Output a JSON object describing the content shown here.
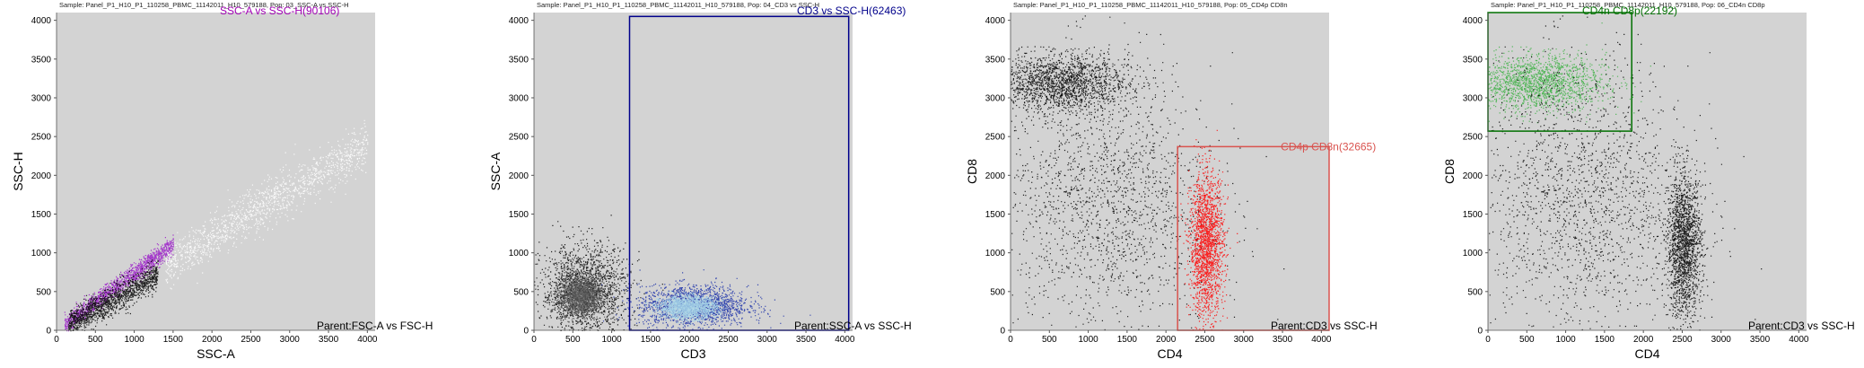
{
  "chart_data": [
    {
      "type": "scatter",
      "title": "Sample: Panel_P1_H10_P1_110258_PBMC_11142011_H10_579188, Pop: 03_SSC-A vs SSC-H",
      "xlabel": "SSC-A",
      "ylabel": "SSC-H",
      "xlim": [
        0,
        4100
      ],
      "ylim": [
        0,
        4100
      ],
      "xticks": [
        0,
        500,
        1000,
        1500,
        2000,
        2500,
        3000,
        3500,
        4000
      ],
      "yticks": [
        0,
        500,
        1000,
        1500,
        2000,
        2500,
        3000,
        3500,
        4000
      ],
      "gate": {
        "label": "SSC-A vs SSC-H(90106)",
        "color": "#a000b4",
        "shape": "none"
      },
      "parent_label": "Parent:FSC-A vs FSC-H",
      "colors": {
        "gated": "#9a1bc8",
        "ungated": "#000000",
        "background": "#d3d3d3"
      },
      "populations": [
        {
          "name": "gated",
          "kind": "diagonal",
          "x_range": [
            100,
            1500
          ],
          "slope": 0.74,
          "spread": 60,
          "color": "#9a1bc8"
        },
        {
          "name": "ungated",
          "kind": "diagonal",
          "x_range": [
            150,
            1300
          ],
          "slope": 0.55,
          "spread": 90,
          "color": "#000000"
        },
        {
          "name": "debris",
          "kind": "diagonal",
          "x_range": [
            1400,
            4000
          ],
          "slope": 0.6,
          "spread": 150,
          "color": "#ffffff"
        }
      ]
    },
    {
      "type": "scatter",
      "title": "Sample: Panel_P1_H10_P1_110258_PBMC_11142011_H10_579188, Pop: 04_CD3 vs SSC-H",
      "xlabel": "CD3",
      "ylabel": "SSC-A",
      "xlim": [
        0,
        4100
      ],
      "ylim": [
        0,
        4100
      ],
      "xticks": [
        0,
        500,
        1000,
        1500,
        2000,
        2500,
        3000,
        3500,
        4000
      ],
      "yticks": [
        0,
        500,
        1000,
        1500,
        2000,
        2500,
        3000,
        3500,
        4000
      ],
      "gate": {
        "label": "CD3 vs SSC-H(62463)",
        "color": "#00008b",
        "shape": "rect",
        "x": [
          1230,
          4050
        ],
        "y": [
          0,
          4050
        ]
      },
      "parent_label": "Parent:SSC-A vs SSC-H",
      "colors": {
        "gated": "#1a2fa8",
        "core": "#a8d8ea",
        "ungated": "#000000",
        "background": "#d3d3d3"
      },
      "populations": [
        {
          "name": "CD3-neg",
          "kind": "blob",
          "cx": 650,
          "cy": 500,
          "sx": 280,
          "sy": 300,
          "color": "#000000"
        },
        {
          "name": "CD3-neg-core",
          "kind": "blob",
          "cx": 600,
          "cy": 450,
          "sx": 130,
          "sy": 120,
          "color": "#555555"
        },
        {
          "name": "CD3-pos",
          "kind": "blob",
          "cx": 2050,
          "cy": 320,
          "sx": 350,
          "sy": 130,
          "color": "#1a2fa8"
        },
        {
          "name": "CD3-pos-core",
          "kind": "blob",
          "cx": 1980,
          "cy": 300,
          "sx": 180,
          "sy": 70,
          "color": "#a8d8ea"
        }
      ]
    },
    {
      "type": "scatter",
      "title": "Sample: Panel_P1_H10_P1_110258_PBMC_11142011_H10_579188, Pop: 05_CD4p CD8n",
      "xlabel": "CD4",
      "ylabel": "CD8",
      "xlim": [
        0,
        4100
      ],
      "ylim": [
        0,
        4100
      ],
      "xticks": [
        0,
        500,
        1000,
        1500,
        2000,
        2500,
        3000,
        3500,
        4000
      ],
      "yticks": [
        0,
        500,
        1000,
        1500,
        2000,
        2500,
        3000,
        3500,
        4000
      ],
      "gate": {
        "label": "CD4p CD8n(32665)",
        "color": "#d9534f",
        "shape": "rect",
        "x": [
          2150,
          4100
        ],
        "y": [
          0,
          2370
        ]
      },
      "parent_label": "Parent:CD3 vs SSC-H",
      "colors": {
        "gated": "#ff0000",
        "ungated": "#000000",
        "background": "#d3d3d3"
      },
      "populations": [
        {
          "name": "CD8-pos",
          "kind": "blob",
          "cx": 600,
          "cy": 3200,
          "sx": 450,
          "sy": 180,
          "color": "#000000"
        },
        {
          "name": "scatter",
          "kind": "blob",
          "cx": 1200,
          "cy": 1700,
          "sx": 700,
          "sy": 900,
          "color": "#000000"
        },
        {
          "name": "CD4-pos",
          "kind": "blob",
          "cx": 2520,
          "cy": 1100,
          "sx": 110,
          "sy": 450,
          "color": "#ff0000"
        }
      ]
    },
    {
      "type": "scatter",
      "title": "Sample: Panel_P1_H10_P1_110258_PBMC_11142011_H10_579188, Pop: 06_CD4n CD8p",
      "xlabel": "CD4",
      "ylabel": "CD8",
      "xlim": [
        0,
        4100
      ],
      "ylim": [
        0,
        4100
      ],
      "xticks": [
        0,
        500,
        1000,
        1500,
        2000,
        2500,
        3000,
        3500,
        4000
      ],
      "yticks": [
        0,
        500,
        1000,
        1500,
        2000,
        2500,
        3000,
        3500,
        4000
      ],
      "gate": {
        "label": "CD4n CD8p(22192)",
        "color": "#007000",
        "shape": "rect",
        "x": [
          0,
          1850
        ],
        "y": [
          2570,
          4100
        ]
      },
      "parent_label": "Parent:CD3 vs SSC-H",
      "colors": {
        "gated": "#3cb043",
        "ungated": "#000000",
        "background": "#d3d3d3"
      },
      "populations": [
        {
          "name": "CD8-pos",
          "kind": "blob",
          "cx": 600,
          "cy": 3200,
          "sx": 450,
          "sy": 180,
          "color": "#3cb043"
        },
        {
          "name": "scatter",
          "kind": "blob",
          "cx": 1200,
          "cy": 1700,
          "sx": 700,
          "sy": 900,
          "color": "#000000"
        },
        {
          "name": "CD4-pos",
          "kind": "blob",
          "cx": 2520,
          "cy": 1100,
          "sx": 110,
          "sy": 450,
          "color": "#000000"
        }
      ]
    }
  ]
}
